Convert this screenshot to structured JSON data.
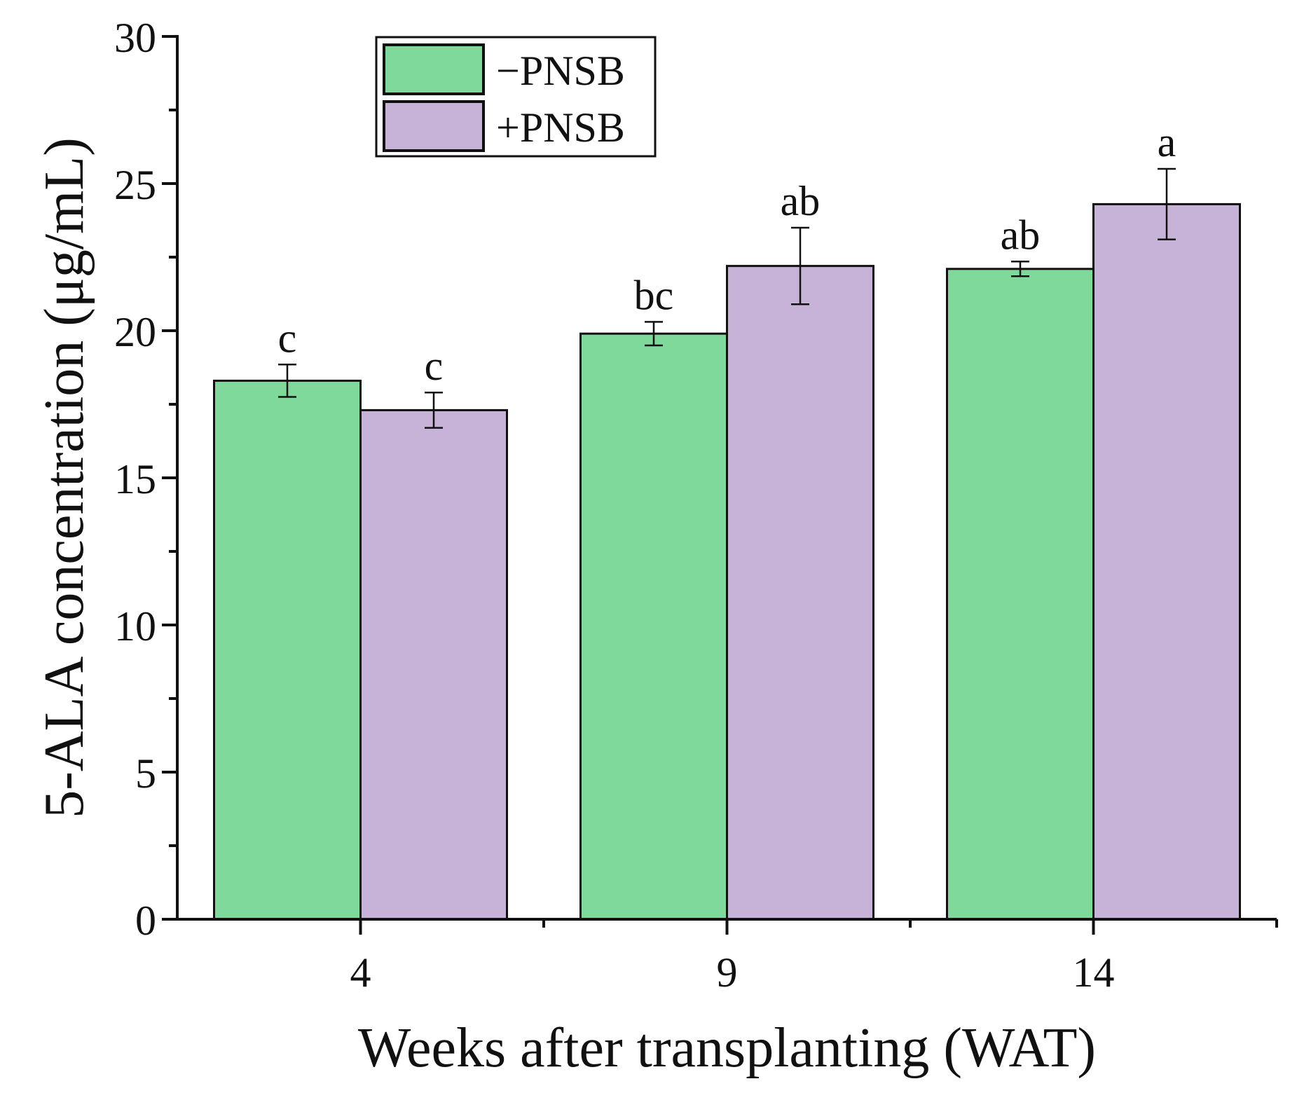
{
  "chart_data": {
    "type": "bar",
    "title": "",
    "xlabel": "Weeks after transplanting (WAT)",
    "ylabel": "5-ALA concentration (μg/mL)",
    "ylim": [
      0,
      30
    ],
    "yticks": [
      "0",
      "5",
      "10",
      "15",
      "20",
      "25",
      "30"
    ],
    "categories": [
      "4",
      "9",
      "14"
    ],
    "series": [
      {
        "name": "−PNSB",
        "color": "#7fd99a",
        "values": [
          18.3,
          19.9,
          22.1
        ],
        "errors": [
          0.55,
          0.4,
          0.25
        ],
        "letters": [
          "c",
          "bc",
          "ab"
        ]
      },
      {
        "name": "+PNSB",
        "color": "#c8b3d8",
        "values": [
          17.3,
          22.2,
          24.3
        ],
        "errors": [
          0.6,
          1.3,
          1.2
        ],
        "letters": [
          "c",
          "ab",
          "a"
        ]
      }
    ],
    "legend": {
      "position": "top-left"
    }
  }
}
